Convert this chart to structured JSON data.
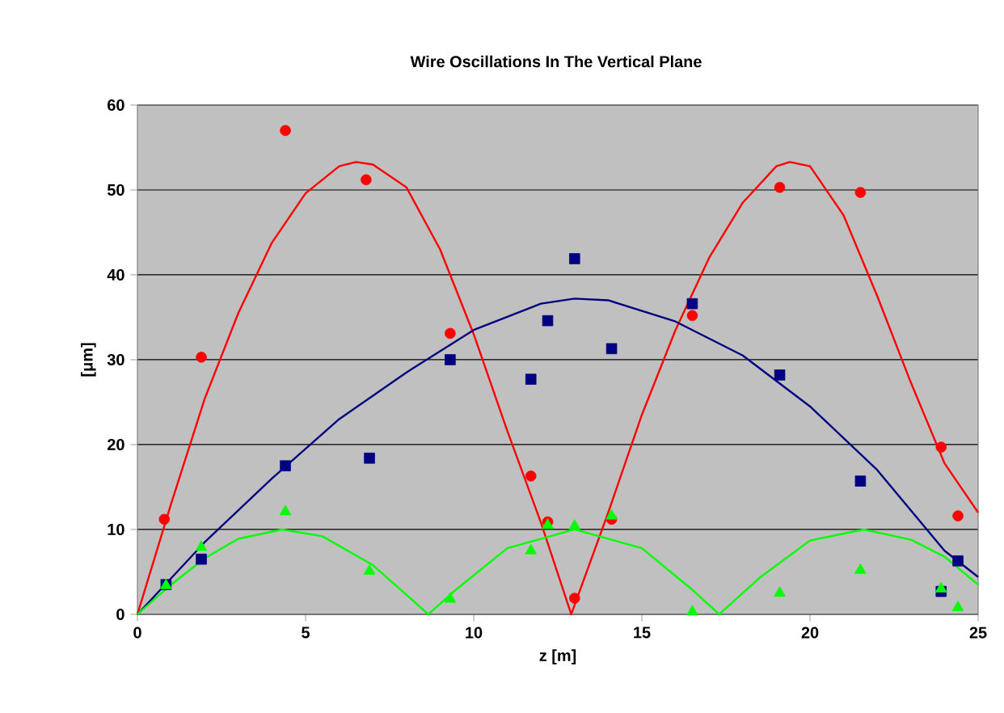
{
  "chart_data": {
    "type": "scatter",
    "title": "Wire Oscillations In The Vertical Plane",
    "xlabel": "z [m]",
    "ylabel": "[μm]",
    "xlim": [
      0,
      25
    ],
    "ylim": [
      0,
      60
    ],
    "xticks": [
      0,
      5,
      10,
      15,
      20,
      25
    ],
    "yticks": [
      0,
      10,
      20,
      30,
      40,
      50,
      60
    ],
    "grid": "y",
    "series": [
      {
        "marker": "circle",
        "color": "#ff0000",
        "x": [
          0.8,
          1.9,
          4.4,
          6.8,
          9.3,
          11.7,
          12.2,
          13.0,
          14.1,
          16.5,
          19.1,
          21.5,
          23.9,
          24.4
        ],
        "values": [
          11.2,
          30.3,
          57,
          51.2,
          33.1,
          16.3,
          10.9,
          1.9,
          11.2,
          35.2,
          50.3,
          49.7,
          19.7,
          11.6
        ]
      },
      {
        "marker": "square",
        "color": "#000080",
        "x": [
          0.85,
          1.9,
          4.4,
          6.9,
          9.3,
          11.7,
          12.2,
          13.0,
          14.1,
          16.5,
          19.1,
          21.5,
          23.9,
          24.4
        ],
        "values": [
          3.5,
          6.5,
          17.5,
          18.4,
          30.0,
          27.7,
          34.6,
          41.9,
          31.3,
          36.6,
          28.2,
          15.7,
          2.7,
          6.3
        ]
      },
      {
        "marker": "triangle",
        "color": "#00ff00",
        "x": [
          0.85,
          1.9,
          4.4,
          6.9,
          9.3,
          11.7,
          12.2,
          13.0,
          14.1,
          16.5,
          19.1,
          21.5,
          23.9,
          24.4
        ],
        "values": [
          3.4,
          7.9,
          12.1,
          5.1,
          1.8,
          7.5,
          10.5,
          10.4,
          11.6,
          0.3,
          2.5,
          5.2,
          3.0,
          0.8
        ]
      },
      {
        "type": "line",
        "marker": "none",
        "color": "#ff0000",
        "x": [
          0,
          1,
          2,
          3,
          4,
          5,
          6,
          6.5,
          7,
          8,
          9,
          10,
          11,
          12,
          12.9,
          14,
          15,
          16,
          17,
          18,
          19,
          19.4,
          20,
          21,
          22,
          23,
          24,
          25
        ],
        "values": [
          0,
          13,
          25.4,
          35.5,
          43.8,
          49.6,
          52.8,
          53.3,
          53,
          50.3,
          43,
          33,
          21.6,
          10.8,
          0,
          12,
          23.5,
          33.5,
          42,
          48.5,
          52.8,
          53.3,
          52.8,
          47,
          37.5,
          27.3,
          17.8,
          12
        ]
      },
      {
        "type": "line",
        "marker": "none",
        "color": "#000080",
        "x": [
          0,
          2,
          4,
          6,
          8,
          10,
          12,
          13,
          14,
          16,
          18,
          20,
          22,
          24,
          25
        ],
        "values": [
          0,
          8.5,
          16,
          23,
          28.5,
          33.5,
          36.6,
          37.2,
          37,
          34.5,
          30.5,
          24.5,
          17,
          7.5,
          4.4
        ]
      },
      {
        "type": "line",
        "marker": "none",
        "color": "#00ff00",
        "x": [
          0,
          1,
          2,
          3,
          4.3,
          5.5,
          7,
          8,
          8.65,
          9.5,
          11,
          13,
          15,
          16.5,
          17.3,
          18.5,
          20,
          21.6,
          23,
          24,
          25
        ],
        "values": [
          0,
          3.5,
          6.6,
          8.9,
          10,
          9.2,
          5.8,
          2.3,
          0,
          3,
          7.8,
          10,
          7.8,
          2.9,
          0,
          4.3,
          8.7,
          10,
          8.8,
          6.8,
          3.5
        ]
      }
    ]
  }
}
